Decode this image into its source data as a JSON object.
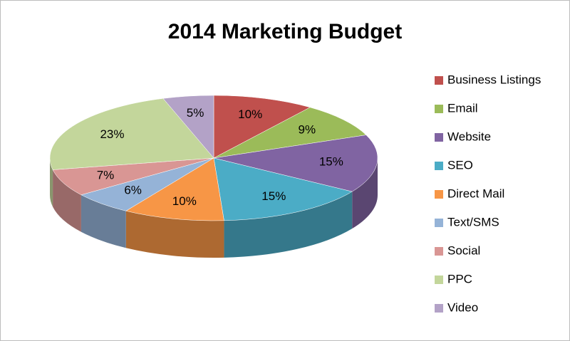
{
  "chart_data": {
    "type": "pie",
    "title": "2014 Marketing Budget",
    "categories": [
      "Business Listings",
      "Email",
      "Website",
      "SEO",
      "Direct Mail",
      "Text/SMS",
      "Social",
      "PPC",
      "Video"
    ],
    "values": [
      10,
      9,
      15,
      15,
      10,
      6,
      7,
      23,
      5
    ],
    "value_labels": [
      "10%",
      "9%",
      "15%",
      "15%",
      "10%",
      "6%",
      "7%",
      "23%",
      "5%"
    ],
    "colors": [
      "#c0504d",
      "#9bbb59",
      "#8064a2",
      "#4bacc6",
      "#f79646",
      "#95b3d7",
      "#d99694",
      "#c3d69b",
      "#b3a2c7"
    ],
    "legend": "right"
  }
}
